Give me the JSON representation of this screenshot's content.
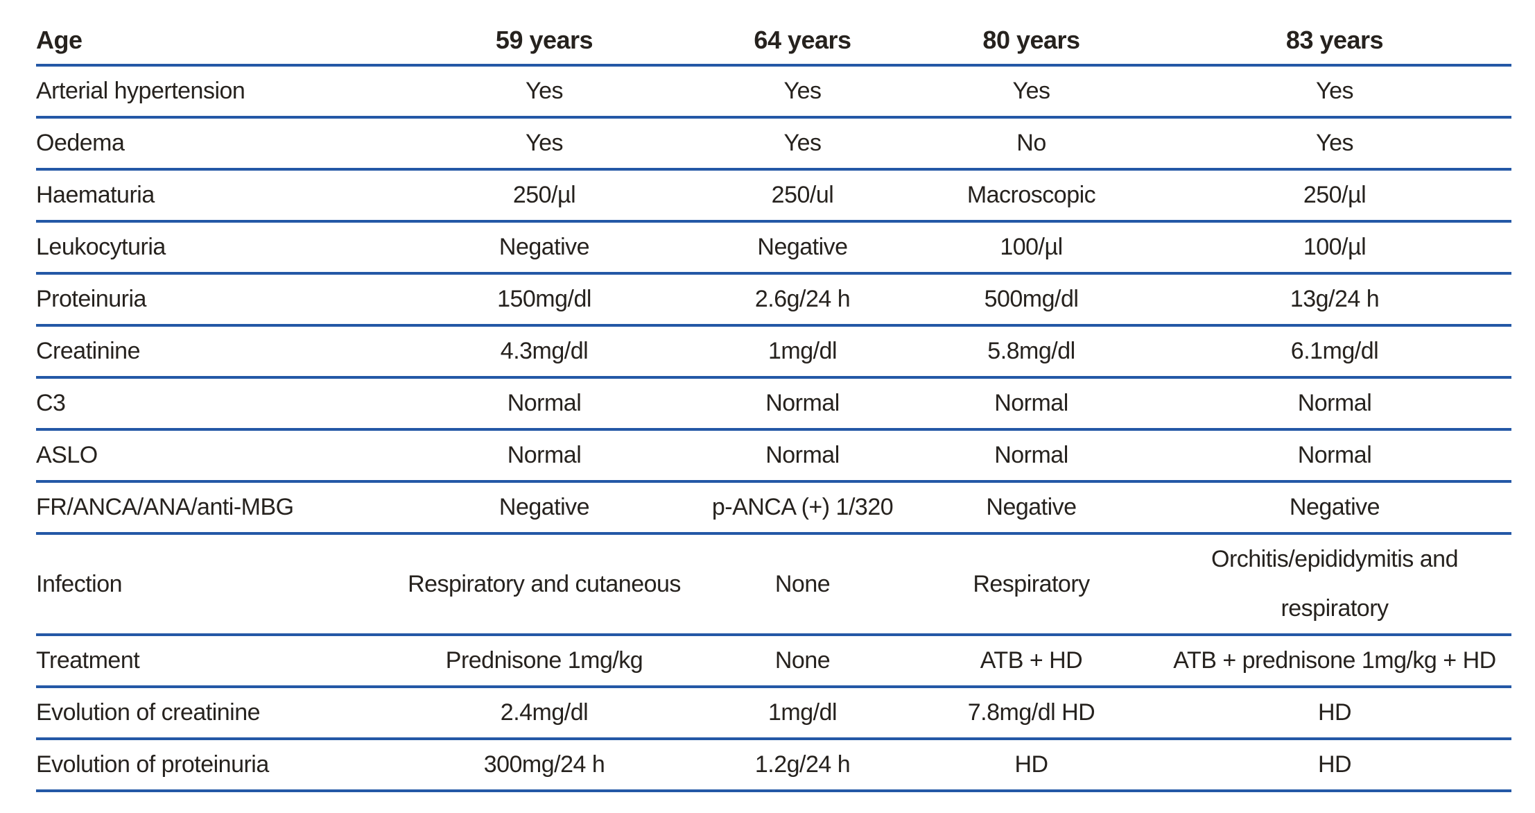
{
  "table": {
    "rule_color": "#2458a6",
    "text_color": "#26221e",
    "header": {
      "label": "Age",
      "columns": [
        "59 years",
        "64 years",
        "80 years",
        "83 years"
      ]
    },
    "rows": [
      {
        "label": "Arterial hypertension",
        "values": [
          "Yes",
          "Yes",
          "Yes",
          "Yes"
        ]
      },
      {
        "label": "Oedema",
        "values": [
          "Yes",
          "Yes",
          "No",
          "Yes"
        ]
      },
      {
        "label": "Haematuria",
        "values": [
          "250/µl",
          "250/ul",
          "Macroscopic",
          "250/µl"
        ]
      },
      {
        "label": "Leukocyturia",
        "values": [
          "Negative",
          "Negative",
          "100/µl",
          "100/µl"
        ]
      },
      {
        "label": "Proteinuria",
        "values": [
          "150mg/dl",
          "2.6g/24 h",
          "500mg/dl",
          "13g/24 h"
        ]
      },
      {
        "label": "Creatinine",
        "values": [
          "4.3mg/dl",
          "1mg/dl",
          "5.8mg/dl",
          "6.1mg/dl"
        ]
      },
      {
        "label": "C3",
        "values": [
          "Normal",
          "Normal",
          "Normal",
          "Normal"
        ]
      },
      {
        "label": "ASLO",
        "values": [
          "Normal",
          "Normal",
          "Normal",
          "Normal"
        ]
      },
      {
        "label": "FR/ANCA/ANA/anti-MBG",
        "values": [
          "Negative",
          "p-ANCA (+) 1/320",
          "Negative",
          "Negative"
        ]
      },
      {
        "label": "Infection",
        "values": [
          "Respiratory and cutaneous",
          "None",
          "Respiratory",
          "Orchitis/epididymitis and\nrespiratory"
        ]
      },
      {
        "label": "Treatment",
        "values": [
          "Prednisone 1mg/kg",
          "None",
          "ATB + HD",
          "ATB + prednisone 1mg/kg + HD"
        ]
      },
      {
        "label": "Evolution of creatinine",
        "values": [
          "2.4mg/dl",
          "1mg/dl",
          "7.8mg/dl HD",
          "HD"
        ]
      },
      {
        "label": "Evolution of proteinuria",
        "values": [
          "300mg/24 h",
          "1.2g/24 h",
          "HD",
          "HD"
        ]
      }
    ]
  }
}
